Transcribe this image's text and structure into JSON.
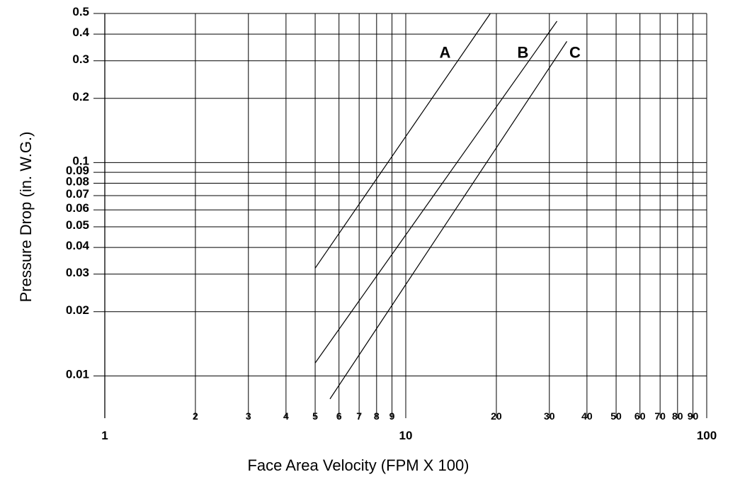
{
  "chart_data": {
    "type": "line",
    "title": "",
    "xlabel": "Face Area Velocity (FPM X 100)",
    "ylabel": "Pressure Drop (in. W.G.)",
    "x_scale": "log",
    "y_scale": "log",
    "xlim": [
      1,
      100
    ],
    "ylim": [
      0.0075,
      0.5
    ],
    "grid": true,
    "x_ticks": [
      {
        "value": 1,
        "label": "1",
        "major": true
      },
      {
        "value": 2,
        "label": "2",
        "major": false
      },
      {
        "value": 3,
        "label": "3",
        "major": false
      },
      {
        "value": 4,
        "label": "4",
        "major": false
      },
      {
        "value": 5,
        "label": "5",
        "major": false
      },
      {
        "value": 6,
        "label": "6",
        "major": false
      },
      {
        "value": 7,
        "label": "7",
        "major": false
      },
      {
        "value": 8,
        "label": "8",
        "major": false
      },
      {
        "value": 9,
        "label": "9",
        "major": false
      },
      {
        "value": 10,
        "label": "10",
        "major": true
      },
      {
        "value": 20,
        "label": "20",
        "major": false
      },
      {
        "value": 30,
        "label": "30",
        "major": false
      },
      {
        "value": 40,
        "label": "40",
        "major": false
      },
      {
        "value": 50,
        "label": "50",
        "major": false
      },
      {
        "value": 60,
        "label": "60",
        "major": false
      },
      {
        "value": 70,
        "label": "70",
        "major": false
      },
      {
        "value": 80,
        "label": "80",
        "major": false
      },
      {
        "value": 90,
        "label": "90",
        "major": false
      },
      {
        "value": 100,
        "label": "100",
        "major": true
      }
    ],
    "y_ticks": [
      {
        "value": 0.01,
        "label": "0.01"
      },
      {
        "value": 0.02,
        "label": "0.02"
      },
      {
        "value": 0.03,
        "label": "0.03"
      },
      {
        "value": 0.04,
        "label": "0.04"
      },
      {
        "value": 0.05,
        "label": "0.05"
      },
      {
        "value": 0.06,
        "label": "0.06"
      },
      {
        "value": 0.07,
        "label": "0.07"
      },
      {
        "value": 0.08,
        "label": "0.08"
      },
      {
        "value": 0.09,
        "label": "0.09"
      },
      {
        "value": 0.1,
        "label": "0.1"
      },
      {
        "value": 0.2,
        "label": "0.2"
      },
      {
        "value": 0.3,
        "label": "0.3"
      },
      {
        "value": 0.4,
        "label": "0.4"
      },
      {
        "value": 0.5,
        "label": "0.5"
      }
    ],
    "series": [
      {
        "name": "A",
        "x": [
          5,
          19.1
        ],
        "y": [
          0.032,
          0.5
        ],
        "label_at": [
          13.5,
          0.33
        ]
      },
      {
        "name": "B",
        "x": [
          5,
          31.8
        ],
        "y": [
          0.0115,
          0.46
        ],
        "label_at": [
          24.5,
          0.33
        ]
      },
      {
        "name": "C",
        "x": [
          5.6,
          34.3
        ],
        "y": [
          0.0078,
          0.37
        ],
        "label_at": [
          36.5,
          0.33
        ]
      }
    ]
  }
}
